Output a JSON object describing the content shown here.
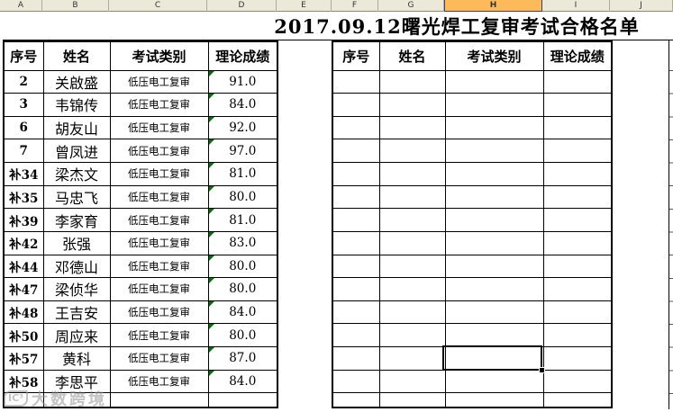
{
  "column_strip": {
    "letters": [
      "A",
      "B",
      "C",
      "D",
      "E",
      "F",
      "G",
      "H",
      "I",
      "J"
    ],
    "highlighted_column": "H"
  },
  "title": "2017.09.12曙光焊工复审考试合格名单",
  "left_table": {
    "headers": [
      "序号",
      "姓名",
      "考试类别",
      "理论成绩"
    ],
    "rows": [
      {
        "no": "2",
        "name": "关啟盛",
        "category": "低压电工复审",
        "score": "91.0"
      },
      {
        "no": "3",
        "name": "韦锦传",
        "category": "低压电工复审",
        "score": "84.0"
      },
      {
        "no": "6",
        "name": "胡友山",
        "category": "低压电工复审",
        "score": "92.0"
      },
      {
        "no": "7",
        "name": "曾凤进",
        "category": "低压电工复审",
        "score": "97.0"
      },
      {
        "no": "补34",
        "name": "梁杰文",
        "category": "低压电工复审",
        "score": "81.0"
      },
      {
        "no": "补35",
        "name": "马忠飞",
        "category": "低压电工复审",
        "score": "80.0"
      },
      {
        "no": "补39",
        "name": "李家育",
        "category": "低压电工复审",
        "score": "81.0"
      },
      {
        "no": "补42",
        "name": "张强",
        "category": "低压电工复审",
        "score": "83.0"
      },
      {
        "no": "补44",
        "name": "邓德山",
        "category": "低压电工复审",
        "score": "80.0"
      },
      {
        "no": "补47",
        "name": "梁侦华",
        "category": "低压电工复审",
        "score": "80.0"
      },
      {
        "no": "补48",
        "name": "王吉安",
        "category": "低压电工复审",
        "score": "84.0"
      },
      {
        "no": "补50",
        "name": "周应来",
        "category": "低压电工复审",
        "score": "80.0"
      },
      {
        "no": "补57",
        "name": "黄科",
        "category": "低压电工复审",
        "score": "87.0"
      },
      {
        "no": "补58",
        "name": "李思平",
        "category": "低压电工复审",
        "score": "84.0"
      }
    ]
  },
  "right_table": {
    "headers": [
      "序号",
      "姓名",
      "考试类别",
      "理论成绩"
    ],
    "visible_empty_rows": 14
  },
  "watermark": {
    "logo_text": "IC³",
    "text": "大数跨境"
  },
  "colors": {
    "strip_bg": "#ECE9D8",
    "highlight_orange": "#FDBA5A",
    "grid_black": "#000000",
    "error_triangle_green": "#007000"
  }
}
